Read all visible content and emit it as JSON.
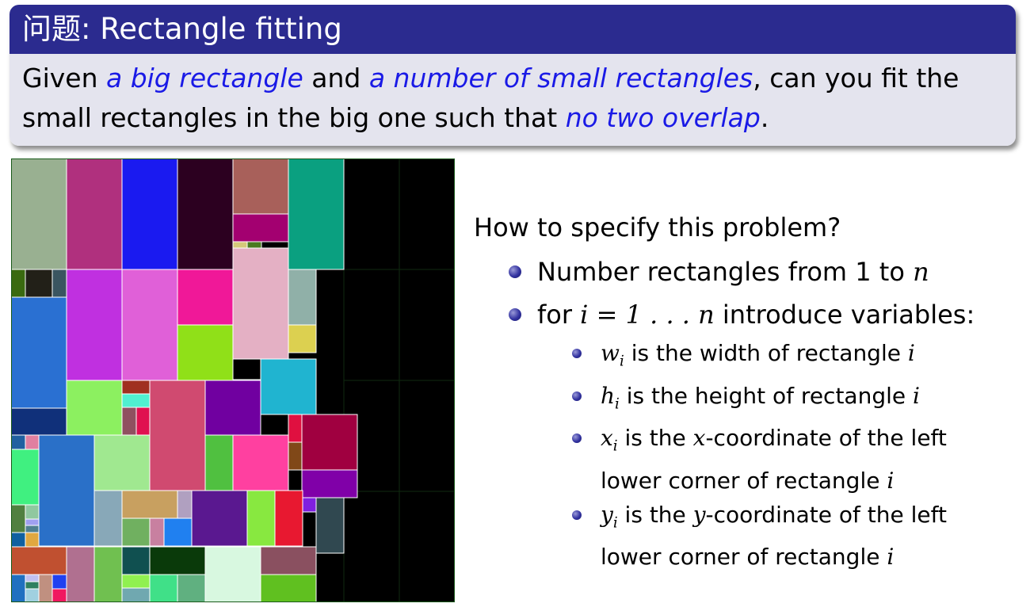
{
  "block": {
    "title": "问题: Rectangle fitting",
    "line1": [
      {
        "t": "Given ",
        "hl": false
      },
      {
        "t": "a big rectangle",
        "hl": true
      },
      {
        "t": " and ",
        "hl": false
      },
      {
        "t": "a number of small rectangles",
        "hl": true
      },
      {
        "t": ", can you fit the",
        "hl": false
      }
    ],
    "line2": [
      {
        "t": "small rectangles in the big one such that ",
        "hl": false
      },
      {
        "t": "no two overlap",
        "hl": true
      },
      {
        "t": ".",
        "hl": false
      }
    ]
  },
  "content": {
    "question": "How to specify this problem?",
    "item1_text": "Number rectangles from 1 to ",
    "item1_math": "n",
    "item2_pre": "for ",
    "item2_math": "i = 1 . . . n",
    "item2_post": " introduce variables:",
    "vars": [
      {
        "sym": "w",
        "sub": "i",
        "pre": " is the width of rectangle ",
        "mid": "",
        "post": "",
        "end": "i"
      },
      {
        "sym": "h",
        "sub": "i",
        "pre": " is the height of rectangle ",
        "mid": "",
        "post": "",
        "end": "i"
      },
      {
        "sym": "x",
        "sub": "i",
        "pre": " is the ",
        "mid": "x",
        "post": "-coordinate of the left lower corner of rectangle ",
        "end": "i"
      },
      {
        "sym": "y",
        "sub": "i",
        "pre": " is the ",
        "mid": "y",
        "post": "-coordinate of the left lower corner of rectangle ",
        "end": "i"
      }
    ]
  },
  "colors": {
    "title_bar": "#2b2b8f",
    "block_body": "#e4e4ee",
    "highlight": "#1a1ae6",
    "bullet": "#3232a0"
  }
}
